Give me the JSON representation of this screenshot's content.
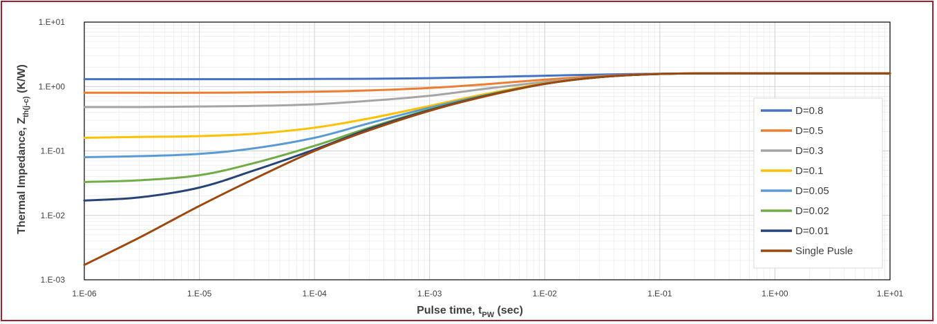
{
  "chart_data": {
    "type": "line",
    "xlabel": {
      "main": "Pulse time, t",
      "sub": "PW",
      "tail": " (sec)"
    },
    "ylabel": {
      "main": "Thermal Impedance, Z",
      "sub": "th(j-c)",
      "tail": " (K/W)"
    },
    "x_scale": "log",
    "y_scale": "log",
    "xlim": [
      1e-06,
      10
    ],
    "ylim": [
      0.001,
      10
    ],
    "x_ticks": [
      "1.E-06",
      "1.E-05",
      "1.E-04",
      "1.E-03",
      "1.E-02",
      "1.E-01",
      "1.E+00",
      "1.E+01"
    ],
    "y_ticks": [
      "1.E+01",
      "1.E+00",
      "1.E-01",
      "1.E-02",
      "1.E-03"
    ],
    "grid": {
      "major": true,
      "minor": true
    },
    "legend_position": "right",
    "x": [
      1e-06,
      3e-06,
      1e-05,
      3e-05,
      0.0001,
      0.0003,
      0.001,
      0.003,
      0.01,
      0.03,
      0.1,
      0.3,
      1,
      10
    ],
    "series": [
      {
        "name": "D=0.8",
        "color": "#4472c4",
        "values": [
          1.3,
          1.3,
          1.3,
          1.3,
          1.31,
          1.32,
          1.35,
          1.4,
          1.47,
          1.53,
          1.58,
          1.6,
          1.6,
          1.6
        ]
      },
      {
        "name": "D=0.5",
        "color": "#ed7d31",
        "values": [
          0.8,
          0.8,
          0.8,
          0.81,
          0.83,
          0.87,
          0.95,
          1.08,
          1.28,
          1.45,
          1.57,
          1.6,
          1.6,
          1.6
        ]
      },
      {
        "name": "D=0.3",
        "color": "#a5a5a5",
        "values": [
          0.48,
          0.48,
          0.49,
          0.5,
          0.53,
          0.6,
          0.72,
          0.92,
          1.18,
          1.42,
          1.57,
          1.6,
          1.6,
          1.6
        ]
      },
      {
        "name": "D=0.1",
        "color": "#ffc000",
        "values": [
          0.16,
          0.165,
          0.17,
          0.185,
          0.23,
          0.32,
          0.5,
          0.76,
          1.12,
          1.4,
          1.57,
          1.6,
          1.6,
          1.6
        ]
      },
      {
        "name": "D=0.05",
        "color": "#5b9bd5",
        "values": [
          0.08,
          0.083,
          0.09,
          0.11,
          0.16,
          0.27,
          0.47,
          0.73,
          1.1,
          1.4,
          1.57,
          1.6,
          1.6,
          1.6
        ]
      },
      {
        "name": "D=0.02",
        "color": "#70ad47",
        "values": [
          0.033,
          0.035,
          0.042,
          0.065,
          0.12,
          0.23,
          0.44,
          0.72,
          1.1,
          1.4,
          1.57,
          1.6,
          1.6,
          1.6
        ]
      },
      {
        "name": "D=0.01",
        "color": "#264478",
        "values": [
          0.017,
          0.019,
          0.027,
          0.05,
          0.105,
          0.22,
          0.43,
          0.71,
          1.1,
          1.4,
          1.57,
          1.6,
          1.6,
          1.6
        ]
      },
      {
        "name": "Single Pusle",
        "color": "#9e480e",
        "values": [
          0.0017,
          0.0045,
          0.014,
          0.037,
          0.1,
          0.21,
          0.42,
          0.7,
          1.1,
          1.4,
          1.57,
          1.6,
          1.6,
          1.6
        ]
      }
    ]
  }
}
